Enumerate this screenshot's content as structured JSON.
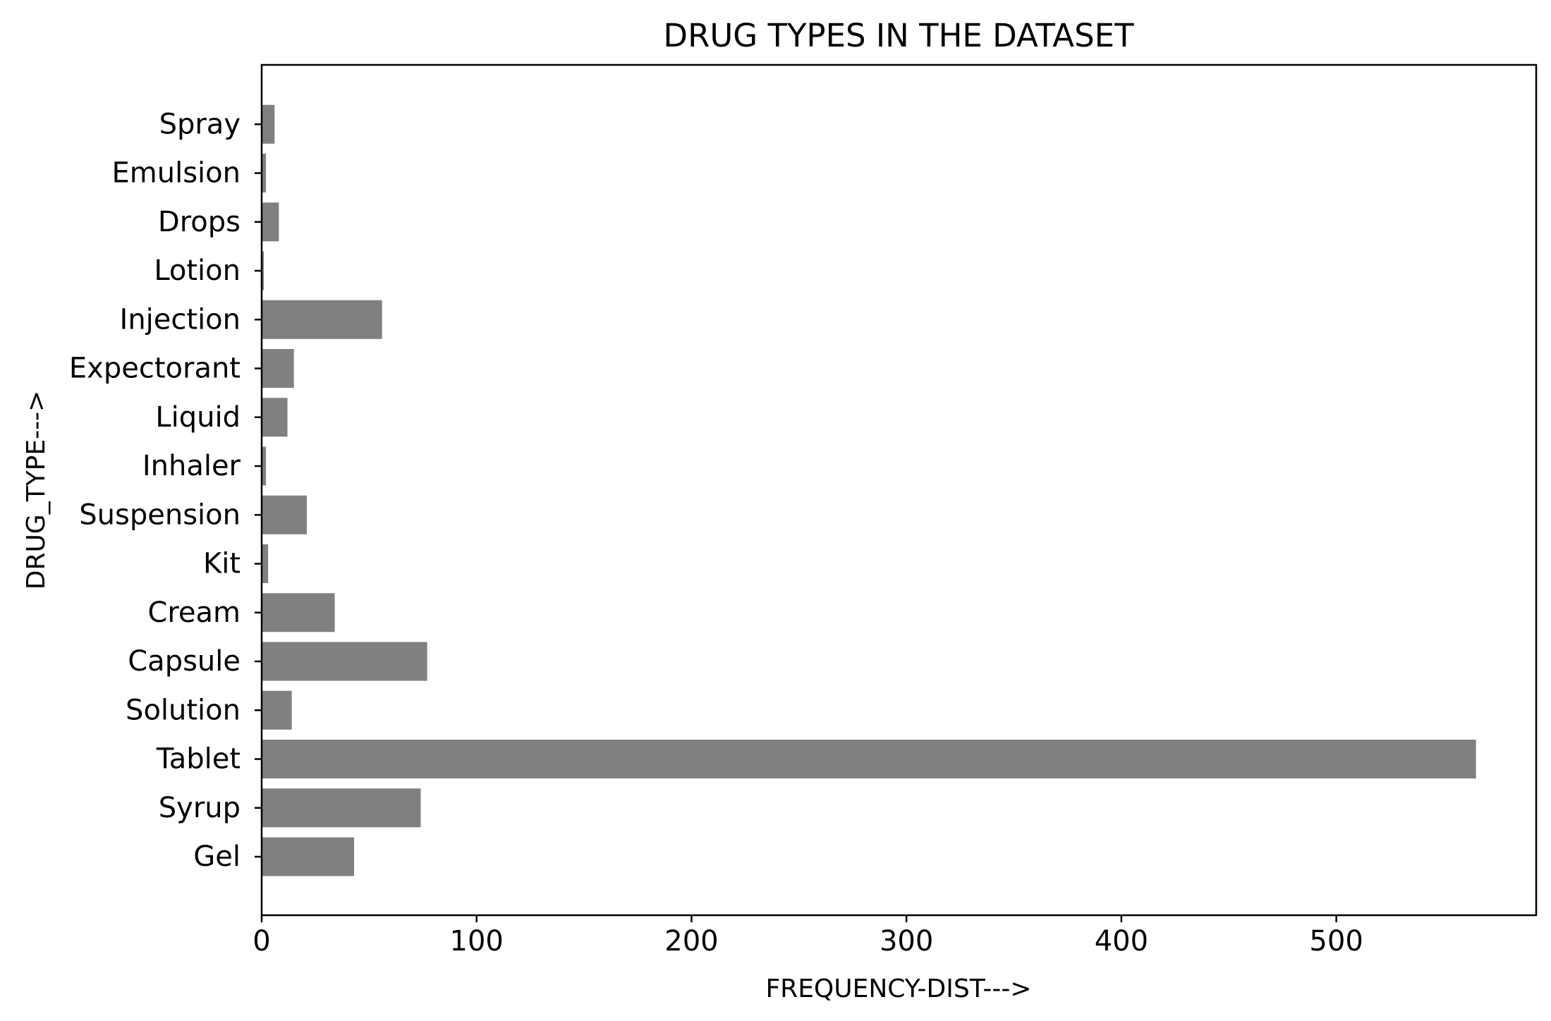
{
  "chart_data": {
    "type": "bar",
    "orientation": "horizontal",
    "title": "DRUG TYPES IN THE DATASET",
    "xlabel": "FREQUENCY-DIST--->",
    "ylabel": "DRUG_TYPE--->",
    "categories": [
      "Gel",
      "Syrup",
      "Tablet",
      "Solution",
      "Capsule",
      "Cream",
      "Kit",
      "Suspension",
      "Inhaler",
      "Liquid",
      "Expectorant",
      "Injection",
      "Lotion",
      "Drops",
      "Emulsion",
      "Spray"
    ],
    "values": [
      43,
      74,
      565,
      14,
      77,
      34,
      3,
      21,
      2,
      12,
      15,
      56,
      1,
      8,
      2,
      6
    ],
    "xlim": [
      0,
      593
    ],
    "xticks": [
      0,
      100,
      200,
      300,
      400,
      500
    ],
    "bar_color": "#808080",
    "grid": false,
    "legend": false
  }
}
